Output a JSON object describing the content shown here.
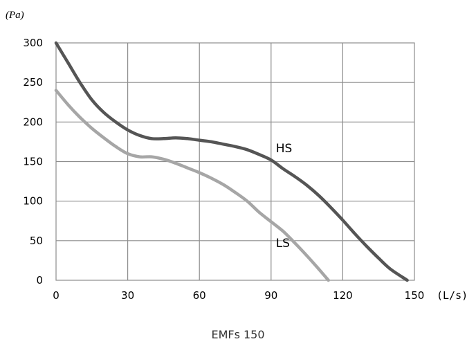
{
  "chart_data": {
    "type": "line",
    "title": "EMFs 150",
    "y_unit": "(Pa)",
    "x_unit": "(L/s)",
    "xlim": [
      0,
      150
    ],
    "ylim": [
      0,
      300
    ],
    "x_ticks": [
      "0",
      "30",
      "60",
      "90",
      "120",
      "150"
    ],
    "y_ticks": [
      "0",
      "50",
      "100",
      "150",
      "200",
      "250",
      "300"
    ],
    "x_tick_values": [
      0,
      30,
      60,
      90,
      120,
      150
    ],
    "y_tick_values": [
      0,
      50,
      100,
      150,
      200,
      250,
      300
    ],
    "grid": true,
    "legend": "none",
    "series": [
      {
        "name": "HS",
        "color": "#555555",
        "x": [
          0,
          5,
          10,
          15,
          20,
          25,
          30,
          35,
          40,
          45,
          50,
          55,
          60,
          65,
          70,
          75,
          80,
          85,
          90,
          95,
          100,
          105,
          110,
          115,
          120,
          125,
          130,
          135,
          140,
          147
        ],
        "y": [
          300,
          275,
          250,
          228,
          212,
          200,
          190,
          183,
          179,
          179,
          180,
          179,
          177,
          175,
          172,
          169,
          165,
          159,
          152,
          141,
          131,
          120,
          107,
          92,
          76,
          59,
          43,
          28,
          14,
          0
        ]
      },
      {
        "name": "LS",
        "color": "#a6a6a6",
        "x": [
          0,
          5,
          10,
          15,
          20,
          25,
          30,
          35,
          40,
          45,
          50,
          55,
          60,
          65,
          70,
          75,
          80,
          85,
          90,
          95,
          100,
          105,
          110,
          114
        ],
        "y": [
          240,
          222,
          206,
          192,
          180,
          169,
          160,
          156,
          156,
          153,
          148,
          142,
          136,
          129,
          121,
          111,
          100,
          86,
          74,
          62,
          47,
          31,
          14,
          0
        ]
      }
    ],
    "annotations": [
      {
        "text": "HS",
        "x": 92,
        "y": 162
      },
      {
        "text": "LS",
        "x": 92,
        "y": 42
      }
    ]
  }
}
